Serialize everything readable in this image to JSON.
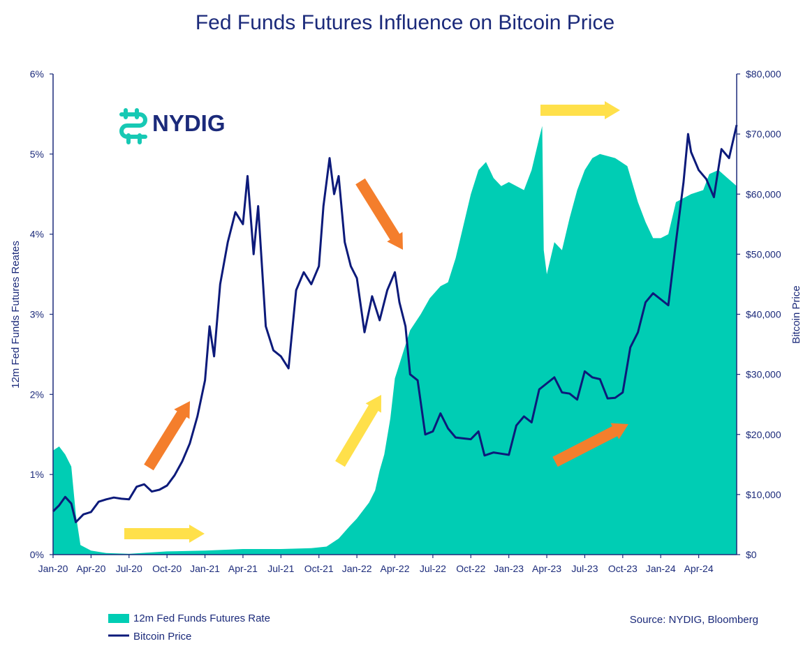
{
  "chart_data": {
    "type": "area+line",
    "title": "Fed Funds Futures Influence on Bitcoin Price",
    "ylabel_left": "12m Fed Funds Futures Reates",
    "ylabel_right": "Bitcoin Price",
    "ylim_left": [
      0,
      6
    ],
    "ylim_right": [
      0,
      80000
    ],
    "yticks_left": [
      "0%",
      "1%",
      "2%",
      "3%",
      "4%",
      "5%",
      "6%"
    ],
    "yticks_right": [
      "$0",
      "$10,000",
      "$20,000",
      "$30,000",
      "$40,000",
      "$50,000",
      "$60,000",
      "$70,000",
      "$80,000"
    ],
    "xlim": [
      2020.0,
      2024.5
    ],
    "xticks": [
      {
        "t": 2020.0,
        "label": "Jan-20"
      },
      {
        "t": 2020.25,
        "label": "Apr-20"
      },
      {
        "t": 2020.5,
        "label": "Jul-20"
      },
      {
        "t": 2020.75,
        "label": "Oct-20"
      },
      {
        "t": 2021.0,
        "label": "Jan-21"
      },
      {
        "t": 2021.25,
        "label": "Apr-21"
      },
      {
        "t": 2021.5,
        "label": "Jul-21"
      },
      {
        "t": 2021.75,
        "label": "Oct-21"
      },
      {
        "t": 2022.0,
        "label": "Jan-22"
      },
      {
        "t": 2022.25,
        "label": "Apr-22"
      },
      {
        "t": 2022.5,
        "label": "Jul-22"
      },
      {
        "t": 2022.75,
        "label": "Oct-22"
      },
      {
        "t": 2023.0,
        "label": "Jan-23"
      },
      {
        "t": 2023.25,
        "label": "Apr-23"
      },
      {
        "t": 2023.5,
        "label": "Jul-23"
      },
      {
        "t": 2023.75,
        "label": "Oct-23"
      },
      {
        "t": 2024.0,
        "label": "Jan-24"
      },
      {
        "t": 2024.25,
        "label": "Apr-24"
      }
    ],
    "series": [
      {
        "name": "12m Fed Funds Futures Rate",
        "kind": "area",
        "color": "#00cdb4",
        "points": [
          [
            2020.0,
            1.3
          ],
          [
            2020.04,
            1.35
          ],
          [
            2020.08,
            1.25
          ],
          [
            2020.12,
            1.1
          ],
          [
            2020.15,
            0.5
          ],
          [
            2020.18,
            0.12
          ],
          [
            2020.25,
            0.05
          ],
          [
            2020.35,
            0.02
          ],
          [
            2020.5,
            0.01
          ],
          [
            2020.75,
            0.04
          ],
          [
            2021.0,
            0.05
          ],
          [
            2021.25,
            0.07
          ],
          [
            2021.5,
            0.07
          ],
          [
            2021.7,
            0.08
          ],
          [
            2021.8,
            0.1
          ],
          [
            2021.88,
            0.2
          ],
          [
            2021.95,
            0.35
          ],
          [
            2022.0,
            0.45
          ],
          [
            2022.08,
            0.65
          ],
          [
            2022.12,
            0.8
          ],
          [
            2022.15,
            1.05
          ],
          [
            2022.18,
            1.25
          ],
          [
            2022.22,
            1.7
          ],
          [
            2022.25,
            2.2
          ],
          [
            2022.3,
            2.5
          ],
          [
            2022.35,
            2.8
          ],
          [
            2022.42,
            3.0
          ],
          [
            2022.48,
            3.2
          ],
          [
            2022.55,
            3.35
          ],
          [
            2022.6,
            3.4
          ],
          [
            2022.65,
            3.7
          ],
          [
            2022.7,
            4.1
          ],
          [
            2022.75,
            4.5
          ],
          [
            2022.8,
            4.8
          ],
          [
            2022.85,
            4.9
          ],
          [
            2022.9,
            4.7
          ],
          [
            2022.95,
            4.6
          ],
          [
            2023.0,
            4.65
          ],
          [
            2023.05,
            4.6
          ],
          [
            2023.1,
            4.55
          ],
          [
            2023.15,
            4.8
          ],
          [
            2023.2,
            5.2
          ],
          [
            2023.22,
            5.35
          ],
          [
            2023.23,
            3.8
          ],
          [
            2023.25,
            3.5
          ],
          [
            2023.3,
            3.9
          ],
          [
            2023.35,
            3.8
          ],
          [
            2023.4,
            4.2
          ],
          [
            2023.45,
            4.55
          ],
          [
            2023.5,
            4.8
          ],
          [
            2023.55,
            4.95
          ],
          [
            2023.6,
            5.0
          ],
          [
            2023.7,
            4.95
          ],
          [
            2023.78,
            4.85
          ],
          [
            2023.85,
            4.4
          ],
          [
            2023.9,
            4.15
          ],
          [
            2023.95,
            3.95
          ],
          [
            2024.0,
            3.95
          ],
          [
            2024.05,
            4.0
          ],
          [
            2024.1,
            4.4
          ],
          [
            2024.2,
            4.5
          ],
          [
            2024.28,
            4.55
          ],
          [
            2024.32,
            4.75
          ],
          [
            2024.38,
            4.8
          ],
          [
            2024.44,
            4.7
          ],
          [
            2024.5,
            4.6
          ]
        ]
      },
      {
        "name": "Bitcoin Price",
        "kind": "line",
        "color": "#0c1a7a",
        "points": [
          [
            2020.0,
            7200
          ],
          [
            2020.04,
            8200
          ],
          [
            2020.08,
            9600
          ],
          [
            2020.12,
            8500
          ],
          [
            2020.15,
            5400
          ],
          [
            2020.2,
            6700
          ],
          [
            2020.25,
            7100
          ],
          [
            2020.3,
            8800
          ],
          [
            2020.35,
            9200
          ],
          [
            2020.4,
            9500
          ],
          [
            2020.45,
            9300
          ],
          [
            2020.5,
            9200
          ],
          [
            2020.55,
            11300
          ],
          [
            2020.6,
            11700
          ],
          [
            2020.65,
            10500
          ],
          [
            2020.7,
            10800
          ],
          [
            2020.75,
            11500
          ],
          [
            2020.8,
            13200
          ],
          [
            2020.85,
            15500
          ],
          [
            2020.9,
            18500
          ],
          [
            2020.95,
            23000
          ],
          [
            2021.0,
            29000
          ],
          [
            2021.03,
            38000
          ],
          [
            2021.06,
            33000
          ],
          [
            2021.1,
            45000
          ],
          [
            2021.15,
            52000
          ],
          [
            2021.2,
            57000
          ],
          [
            2021.25,
            55000
          ],
          [
            2021.28,
            63000
          ],
          [
            2021.32,
            50000
          ],
          [
            2021.35,
            58000
          ],
          [
            2021.4,
            38000
          ],
          [
            2021.45,
            34000
          ],
          [
            2021.5,
            33000
          ],
          [
            2021.55,
            31000
          ],
          [
            2021.6,
            44000
          ],
          [
            2021.65,
            47000
          ],
          [
            2021.7,
            45000
          ],
          [
            2021.75,
            48000
          ],
          [
            2021.78,
            58000
          ],
          [
            2021.82,
            66000
          ],
          [
            2021.85,
            60000
          ],
          [
            2021.88,
            63000
          ],
          [
            2021.92,
            52000
          ],
          [
            2021.96,
            48000
          ],
          [
            2022.0,
            46000
          ],
          [
            2022.05,
            37000
          ],
          [
            2022.1,
            43000
          ],
          [
            2022.15,
            39000
          ],
          [
            2022.2,
            44000
          ],
          [
            2022.25,
            47000
          ],
          [
            2022.28,
            42000
          ],
          [
            2022.32,
            38000
          ],
          [
            2022.35,
            30000
          ],
          [
            2022.4,
            29000
          ],
          [
            2022.45,
            20000
          ],
          [
            2022.5,
            20500
          ],
          [
            2022.55,
            23500
          ],
          [
            2022.6,
            21000
          ],
          [
            2022.65,
            19500
          ],
          [
            2022.75,
            19200
          ],
          [
            2022.8,
            20500
          ],
          [
            2022.84,
            16500
          ],
          [
            2022.9,
            17000
          ],
          [
            2022.95,
            16800
          ],
          [
            2023.0,
            16600
          ],
          [
            2023.05,
            21500
          ],
          [
            2023.1,
            23000
          ],
          [
            2023.15,
            22000
          ],
          [
            2023.2,
            27500
          ],
          [
            2023.25,
            28500
          ],
          [
            2023.3,
            29500
          ],
          [
            2023.35,
            27000
          ],
          [
            2023.4,
            26800
          ],
          [
            2023.45,
            25800
          ],
          [
            2023.5,
            30500
          ],
          [
            2023.55,
            29500
          ],
          [
            2023.6,
            29200
          ],
          [
            2023.65,
            26000
          ],
          [
            2023.7,
            26100
          ],
          [
            2023.75,
            27000
          ],
          [
            2023.8,
            34500
          ],
          [
            2023.85,
            37000
          ],
          [
            2023.9,
            42000
          ],
          [
            2023.95,
            43500
          ],
          [
            2024.0,
            42500
          ],
          [
            2024.05,
            41500
          ],
          [
            2024.1,
            52000
          ],
          [
            2024.15,
            62000
          ],
          [
            2024.18,
            70000
          ],
          [
            2024.2,
            67000
          ],
          [
            2024.25,
            64000
          ],
          [
            2024.3,
            62500
          ],
          [
            2024.35,
            59500
          ],
          [
            2024.4,
            67500
          ],
          [
            2024.45,
            66000
          ],
          [
            2024.5,
            71500
          ]
        ]
      }
    ],
    "legend": {
      "placement": "bottom-left",
      "items": [
        {
          "label": "12m Fed Funds Futures Rate",
          "kind": "area",
          "color": "#00cdb4"
        },
        {
          "label": "Bitcoin Price",
          "kind": "line",
          "color": "#0c1a7a"
        }
      ]
    },
    "source": "Source: NYDIG, Bloomberg",
    "annotations": [
      {
        "kind": "arrow",
        "color": "#ffe04a",
        "label": "Yellow arrow: rates flat (mid-2020)"
      },
      {
        "kind": "arrow",
        "color": "#f47e2c",
        "label": "Orange arrow: bitcoin rising (late 2020)"
      },
      {
        "kind": "arrow",
        "color": "#f47e2c",
        "label": "Orange arrow: bitcoin falling (late 2021)"
      },
      {
        "kind": "arrow",
        "color": "#ffe04a",
        "label": "Yellow arrow: rates rising (early 2022)"
      },
      {
        "kind": "arrow",
        "color": "#ffe04a",
        "label": "Yellow arrow: rates flat (2023)"
      },
      {
        "kind": "arrow",
        "color": "#f47e2c",
        "label": "Orange arrow: bitcoin rising (late 2023)"
      }
    ]
  },
  "logo": {
    "text": "NYDIG",
    "color": "#1b2a7a",
    "icon_color": "#17c9b4",
    "icon": "nydig-logo-icon"
  },
  "colors": {
    "axis": "#1b2a7a",
    "orange": "#f47e2c",
    "yellow": "#ffe04a"
  }
}
